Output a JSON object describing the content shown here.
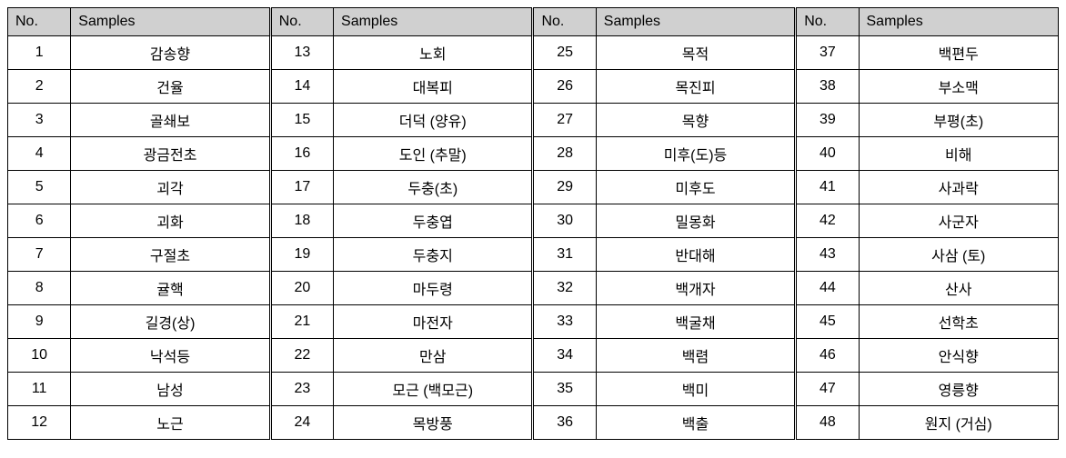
{
  "headers": {
    "no": "No.",
    "samples": "Samples"
  },
  "styling": {
    "header_bg": "#d0d0d0",
    "border_color": "#000000",
    "font_size": 16,
    "cell_padding": 6,
    "background": "#ffffff"
  },
  "columns": [
    [
      {
        "no": "1",
        "sample": "감송향"
      },
      {
        "no": "2",
        "sample": "건율"
      },
      {
        "no": "3",
        "sample": "골쇄보"
      },
      {
        "no": "4",
        "sample": "광금전초"
      },
      {
        "no": "5",
        "sample": "괴각"
      },
      {
        "no": "6",
        "sample": "괴화"
      },
      {
        "no": "7",
        "sample": "구절초"
      },
      {
        "no": "8",
        "sample": "귤핵"
      },
      {
        "no": "9",
        "sample": "길경(상)"
      },
      {
        "no": "10",
        "sample": "낙석등"
      },
      {
        "no": "11",
        "sample": "남성"
      },
      {
        "no": "12",
        "sample": "노근"
      }
    ],
    [
      {
        "no": "13",
        "sample": "노회"
      },
      {
        "no": "14",
        "sample": "대복피"
      },
      {
        "no": "15",
        "sample": "더덕 (양유)"
      },
      {
        "no": "16",
        "sample": "도인 (추말)"
      },
      {
        "no": "17",
        "sample": "두충(초)"
      },
      {
        "no": "18",
        "sample": "두충엽"
      },
      {
        "no": "19",
        "sample": "두충지"
      },
      {
        "no": "20",
        "sample": "마두령"
      },
      {
        "no": "21",
        "sample": "마전자"
      },
      {
        "no": "22",
        "sample": "만삼"
      },
      {
        "no": "23",
        "sample": "모근 (백모근)"
      },
      {
        "no": "24",
        "sample": "목방풍"
      }
    ],
    [
      {
        "no": "25",
        "sample": "목적"
      },
      {
        "no": "26",
        "sample": "목진피"
      },
      {
        "no": "27",
        "sample": "목향"
      },
      {
        "no": "28",
        "sample": "미후(도)등"
      },
      {
        "no": "29",
        "sample": "미후도"
      },
      {
        "no": "30",
        "sample": "밀몽화"
      },
      {
        "no": "31",
        "sample": "반대해"
      },
      {
        "no": "32",
        "sample": "백개자"
      },
      {
        "no": "33",
        "sample": "백굴채"
      },
      {
        "no": "34",
        "sample": "백렴"
      },
      {
        "no": "35",
        "sample": "백미"
      },
      {
        "no": "36",
        "sample": "백출"
      }
    ],
    [
      {
        "no": "37",
        "sample": "백편두"
      },
      {
        "no": "38",
        "sample": "부소맥"
      },
      {
        "no": "39",
        "sample": "부평(초)"
      },
      {
        "no": "40",
        "sample": "비해"
      },
      {
        "no": "41",
        "sample": "사과락"
      },
      {
        "no": "42",
        "sample": "사군자"
      },
      {
        "no": "43",
        "sample": "사삼 (토)"
      },
      {
        "no": "44",
        "sample": "산사"
      },
      {
        "no": "45",
        "sample": "선학초"
      },
      {
        "no": "46",
        "sample": "안식향"
      },
      {
        "no": "47",
        "sample": "영릉향"
      },
      {
        "no": "48",
        "sample": "원지 (거심)"
      }
    ]
  ]
}
